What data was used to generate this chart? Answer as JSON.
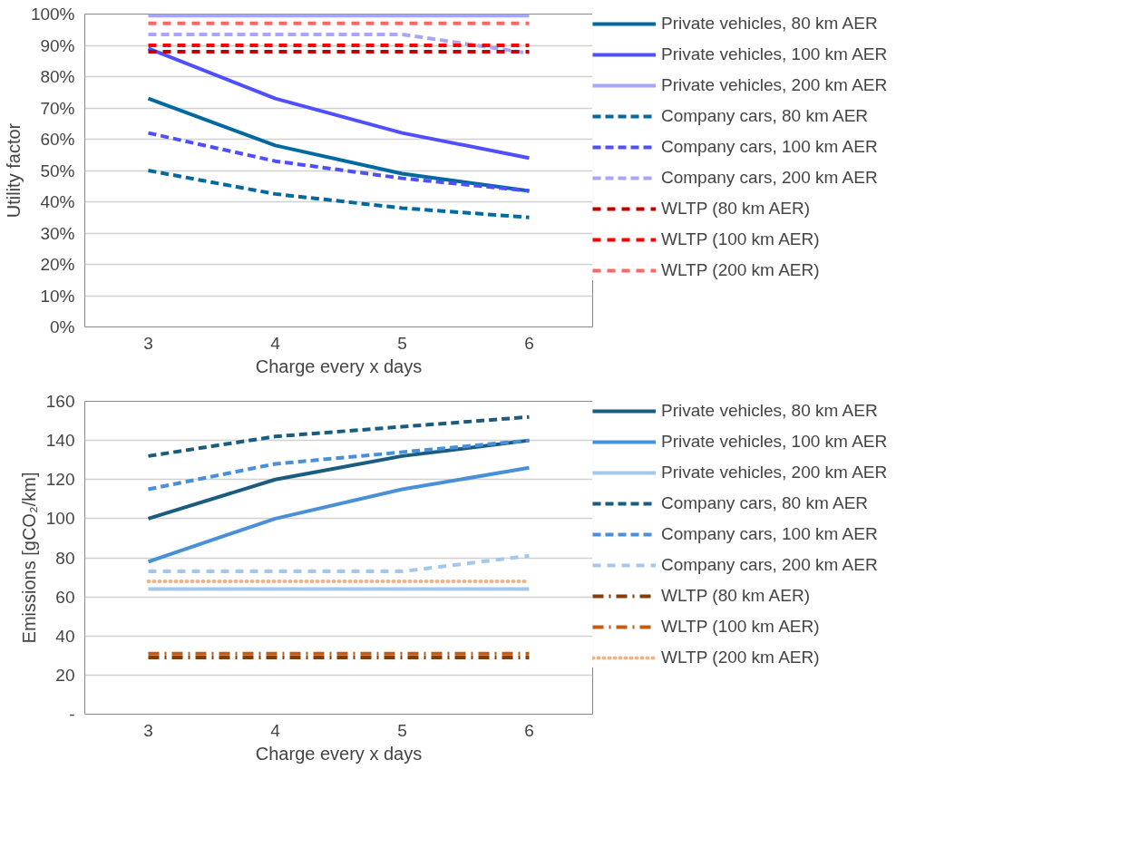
{
  "chart_data": [
    {
      "type": "line",
      "xlabel": "Charge every x days",
      "ylabel": "Utility factor",
      "categories": [
        "3",
        "4",
        "5",
        "6"
      ],
      "ylim": [
        0,
        100
      ],
      "yticks": [
        {
          "value": 0,
          "label": "0%"
        },
        {
          "value": 10,
          "label": "10%"
        },
        {
          "value": 20,
          "label": "20%"
        },
        {
          "value": 30,
          "label": "30%"
        },
        {
          "value": 40,
          "label": "40%"
        },
        {
          "value": 50,
          "label": "50%"
        },
        {
          "value": 60,
          "label": "60%"
        },
        {
          "value": 70,
          "label": "70%"
        },
        {
          "value": 80,
          "label": "80%"
        },
        {
          "value": 90,
          "label": "90%"
        },
        {
          "value": 100,
          "label": "100%"
        }
      ],
      "grid": "y",
      "legend": "right",
      "marker": "none",
      "series": [
        {
          "name": "Private vehicles, 80 km AER",
          "color": "#00699f",
          "line_style": "solid",
          "values": [
            73,
            58,
            49,
            43.5
          ]
        },
        {
          "name": "Private vehicles, 100 km AER",
          "color": "#4f4fff",
          "line_style": "solid",
          "values": [
            89,
            73,
            62,
            54
          ]
        },
        {
          "name": "Private vehicles, 200 km AER",
          "color": "#a6a6ff",
          "line_style": "solid",
          "values": [
            99.5,
            99.5,
            99.5,
            99.5
          ]
        },
        {
          "name": "Company cars, 80 km AER",
          "color": "#00699f",
          "line_style": "dashed",
          "values": [
            50,
            42.5,
            38,
            35
          ]
        },
        {
          "name": "Company cars, 100 km AER",
          "color": "#4f4fff",
          "line_style": "dashed",
          "values": [
            62,
            53,
            47.5,
            43.5
          ]
        },
        {
          "name": "Company cars, 200 km AER",
          "color": "#a6a6ff",
          "line_style": "dashed",
          "values": [
            93.5,
            93.5,
            93.5,
            87.5
          ]
        },
        {
          "name": "WLTP (80 km AER)",
          "color": "#c00000",
          "line_style": "dashed",
          "values": [
            88,
            88,
            88,
            88
          ]
        },
        {
          "name": "WLTP (100 km AER)",
          "color": "#ff0000",
          "line_style": "dashed",
          "values": [
            90,
            90,
            90,
            90
          ]
        },
        {
          "name": "WLTP (200 km AER)",
          "color": "#ff6666",
          "line_style": "dashed",
          "values": [
            97,
            97,
            97,
            97
          ]
        }
      ]
    },
    {
      "type": "line",
      "xlabel": "Charge every x days",
      "ylabel": "Emissions [gCO₂/km]",
      "categories": [
        "3",
        "4",
        "5",
        "6"
      ],
      "ylim": [
        0,
        160
      ],
      "yticks": [
        {
          "value": 0,
          "label": "-"
        },
        20,
        40,
        60,
        80,
        100,
        120,
        140,
        160
      ],
      "grid": "y",
      "legend": "right",
      "marker": "none",
      "series": [
        {
          "name": "Private vehicles, 80 km AER",
          "color": "#1a5c80",
          "line_style": "solid",
          "values": [
            100,
            120,
            132,
            140
          ]
        },
        {
          "name": "Private vehicles, 100 km AER",
          "color": "#4a90d9",
          "line_style": "solid",
          "values": [
            78,
            100,
            115,
            126
          ]
        },
        {
          "name": "Private vehicles, 200 km AER",
          "color": "#a3c8ec",
          "line_style": "solid",
          "values": [
            64,
            64,
            64,
            64
          ]
        },
        {
          "name": "Company cars, 80 km AER",
          "color": "#1a5c80",
          "line_style": "dashed",
          "values": [
            132,
            142,
            147,
            152
          ]
        },
        {
          "name": "Company cars, 100 km AER",
          "color": "#4a90d9",
          "line_style": "dashed",
          "values": [
            115,
            128,
            134,
            140
          ]
        },
        {
          "name": "Company cars, 200 km AER",
          "color": "#a3c8ec",
          "line_style": "dashed",
          "values": [
            73,
            73,
            73,
            81
          ]
        },
        {
          "name": "WLTP (80 km AER)",
          "color": "#843c0c",
          "line_style": "dashdot",
          "values": [
            29,
            29,
            29,
            29
          ]
        },
        {
          "name": "WLTP (100 km AER)",
          "color": "#c55a11",
          "line_style": "dashdot",
          "values": [
            31,
            31,
            31,
            31
          ]
        },
        {
          "name": "WLTP (200 km AER)",
          "color": "#f4b183",
          "line_style": "dotted",
          "values": [
            68,
            68,
            68,
            68
          ]
        }
      ]
    }
  ]
}
